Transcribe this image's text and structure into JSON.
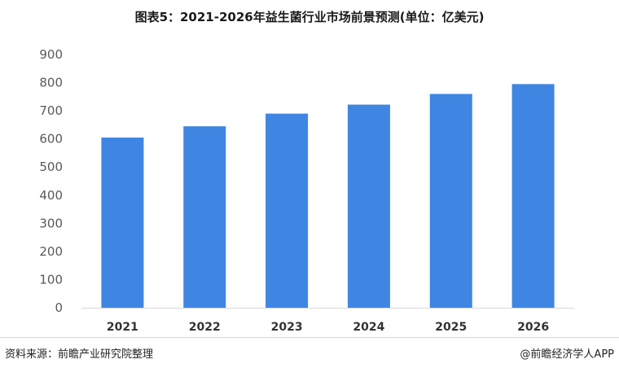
{
  "title": "图表5：2021-2026年益生菌行业市场前景预测(单位：亿美元)",
  "source": "资料来源：前瞻产业研究院整理",
  "brand": "@前瞻经济学人APP",
  "chart_data": {
    "type": "bar",
    "categories": [
      "2021",
      "2022",
      "2023",
      "2024",
      "2025",
      "2026"
    ],
    "values": [
      605,
      645,
      690,
      722,
      760,
      795
    ],
    "ylim": [
      0,
      900
    ],
    "yticks": [
      0,
      100,
      200,
      300,
      400,
      500,
      600,
      700,
      800,
      900
    ],
    "grid": false,
    "bar_color": "#3f86e2"
  }
}
